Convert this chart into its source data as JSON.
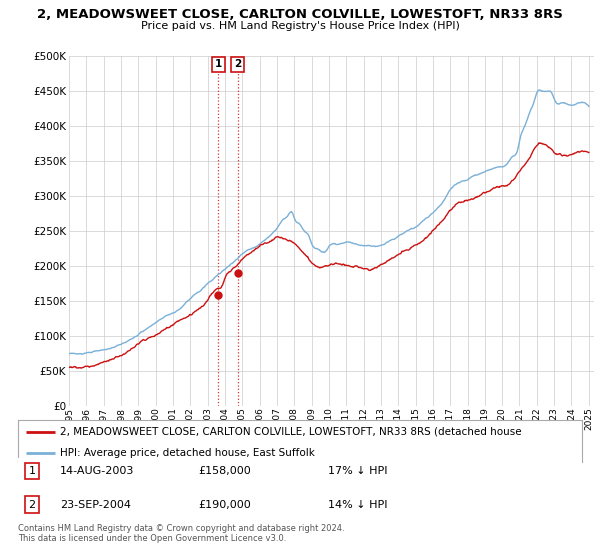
{
  "title": "2, MEADOWSWEET CLOSE, CARLTON COLVILLE, LOWESTOFT, NR33 8RS",
  "subtitle": "Price paid vs. HM Land Registry's House Price Index (HPI)",
  "ylabel_ticks": [
    "£0",
    "£50K",
    "£100K",
    "£150K",
    "£200K",
    "£250K",
    "£300K",
    "£350K",
    "£400K",
    "£450K",
    "£500K"
  ],
  "ytick_values": [
    0,
    50000,
    100000,
    150000,
    200000,
    250000,
    300000,
    350000,
    400000,
    450000,
    500000
  ],
  "xtick_years": [
    "1995",
    "1996",
    "1997",
    "1998",
    "1999",
    "2000",
    "2001",
    "2002",
    "2003",
    "2004",
    "2005",
    "2006",
    "2007",
    "2008",
    "2009",
    "2010",
    "2011",
    "2012",
    "2013",
    "2014",
    "2015",
    "2016",
    "2017",
    "2018",
    "2019",
    "2020",
    "2021",
    "2022",
    "2023",
    "2024",
    "2025"
  ],
  "hpi_color": "#7ab0d8",
  "price_color": "#cc1111",
  "sale1_date": 2003.62,
  "sale1_price": 158000,
  "sale2_date": 2004.73,
  "sale2_price": 190000,
  "legend_line1": "2, MEADOWSWEET CLOSE, CARLTON COLVILLE, LOWESTOFT, NR33 8RS (detached house",
  "legend_line2": "HPI: Average price, detached house, East Suffolk",
  "table_row1": [
    "1",
    "14-AUG-2003",
    "£158,000",
    "17% ↓ HPI"
  ],
  "table_row2": [
    "2",
    "23-SEP-2004",
    "£190,000",
    "14% ↓ HPI"
  ],
  "footnote": "Contains HM Land Registry data © Crown copyright and database right 2024.\nThis data is licensed under the Open Government Licence v3.0.",
  "background_color": "#ffffff",
  "grid_color": "#cccccc"
}
